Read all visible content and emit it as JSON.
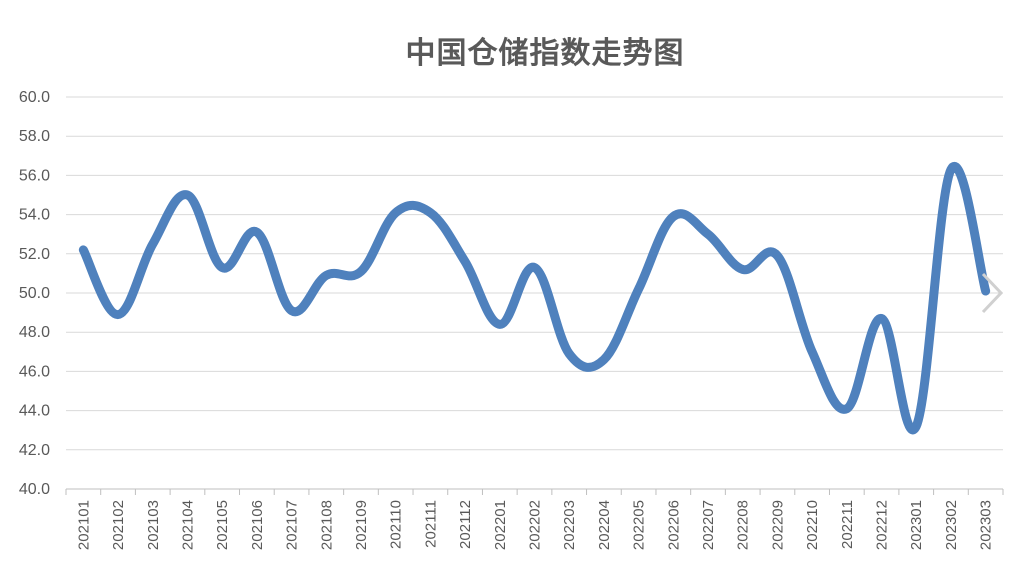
{
  "chart_data": {
    "type": "line",
    "title": "中国仓储指数走势图",
    "xlabel": "",
    "ylabel": "",
    "ylim": [
      40.0,
      60.0
    ],
    "yticks": [
      "40.0",
      "42.0",
      "44.0",
      "46.0",
      "48.0",
      "50.0",
      "52.0",
      "54.0",
      "56.0",
      "58.0",
      "60.0"
    ],
    "grid": true,
    "categories": [
      "202101",
      "202102",
      "202103",
      "202104",
      "202105",
      "202106",
      "202107",
      "202108",
      "202109",
      "202110",
      "202111",
      "202112",
      "202201",
      "202202",
      "202203",
      "202204",
      "202205",
      "202206",
      "202207",
      "202208",
      "202209",
      "202210",
      "202211",
      "202212",
      "202301",
      "202302",
      "202303"
    ],
    "series": [
      {
        "color": "#4f81bd",
        "values": [
          52.2,
          48.9,
          52.5,
          55.0,
          51.3,
          53.1,
          49.1,
          50.9,
          51.1,
          54.1,
          54.1,
          51.6,
          48.4,
          51.3,
          46.9,
          46.6,
          50.2,
          53.9,
          53.0,
          51.2,
          51.9,
          47.0,
          44.1,
          48.7,
          43.2,
          56.3,
          50.1
        ]
      }
    ]
  },
  "ui": {
    "next_icon": "chevron-right-icon"
  }
}
